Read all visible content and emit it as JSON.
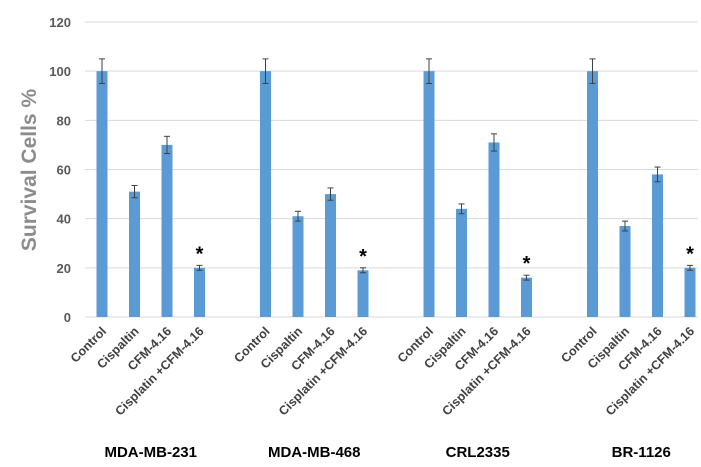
{
  "chart_data": {
    "type": "bar",
    "ylabel": "Survival Cells %",
    "ylim": [
      0,
      120
    ],
    "yticks": [
      0,
      20,
      40,
      60,
      80,
      100,
      120
    ],
    "grid": true,
    "bar_color": "#5b9bd5",
    "grid_color": "#d9d9d9",
    "categories": [
      "Control",
      "Cispaltin",
      "CFM-4.16",
      "Cisplatin +CFM-4.16"
    ],
    "groups": [
      {
        "name": "MDA-MB-231",
        "values": [
          100,
          51,
          70,
          20
        ],
        "errors": [
          5,
          2.5,
          3.5,
          1
        ],
        "stars": [
          "",
          "",
          "",
          "*"
        ]
      },
      {
        "name": "MDA-MB-468",
        "values": [
          100,
          41,
          50,
          19
        ],
        "errors": [
          5,
          2,
          2.5,
          1
        ],
        "stars": [
          "",
          "",
          "",
          "*"
        ]
      },
      {
        "name": "CRL2335",
        "values": [
          100,
          44,
          71,
          16
        ],
        "errors": [
          5,
          2,
          3.5,
          1
        ],
        "stars": [
          "",
          "",
          "",
          "*"
        ]
      },
      {
        "name": "BR-1126",
        "values": [
          100,
          37,
          58,
          20
        ],
        "errors": [
          5,
          2,
          3,
          1
        ],
        "stars": [
          "",
          "",
          "",
          "*"
        ]
      }
    ]
  }
}
